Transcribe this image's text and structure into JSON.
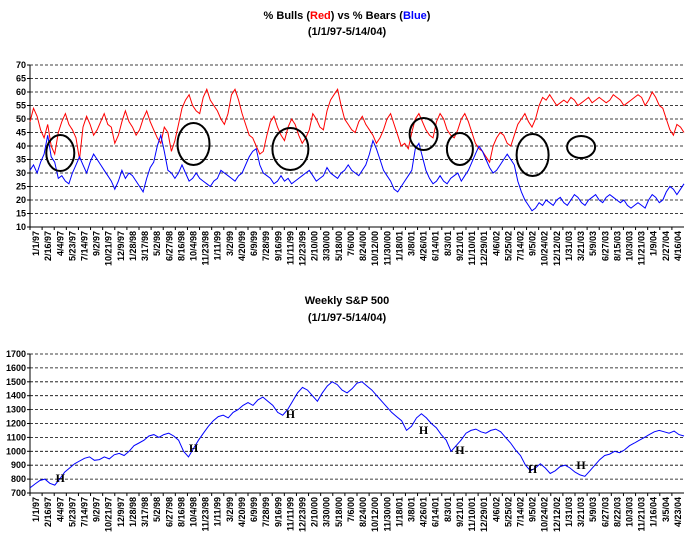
{
  "chart_data": [
    {
      "type": "line",
      "title_parts": [
        {
          "text": "% Bulls (",
          "color": "#000000"
        },
        {
          "text": "Red",
          "color": "#ff0000"
        },
        {
          "text": ") vs % Bears (",
          "color": "#000000"
        },
        {
          "text": "Blue",
          "color": "#0000ff"
        },
        {
          "text": ")",
          "color": "#000000"
        }
      ],
      "subtitle": "(1/1/97-5/14/04)",
      "xlabel": "",
      "ylabel": "",
      "ylim": [
        10,
        70
      ],
      "yticks": [
        10,
        15,
        20,
        25,
        30,
        35,
        40,
        45,
        50,
        55,
        60,
        65,
        70
      ],
      "grid": "horizontal-dashed",
      "x_tick_labels": [
        "1/1/97",
        "2/16/97",
        "4/4/97",
        "5/23/97",
        "7/14/97",
        "9/2/97",
        "10/21/97",
        "12/9/97",
        "1/28/98",
        "3/17/98",
        "5/2/98",
        "6/27/98",
        "8/16/98",
        "10/4/98",
        "11/23/98",
        "1/11/99",
        "3/2/99",
        "4/20/99",
        "6/9/99",
        "7/28/99",
        "9/16/99",
        "11/11/99",
        "12/23/99",
        "2/10/00",
        "3/30/00",
        "5/18/00",
        "7/6/00",
        "8/24/00",
        "10/12/00",
        "11/30/00",
        "1/18/01",
        "3/8/01",
        "4/26/01",
        "6/14/01",
        "8/3/01",
        "9/21/01",
        "11/10/01",
        "12/29/01",
        "4/6/02",
        "5/25/02",
        "7/14/02",
        "9/5/02",
        "10/24/02",
        "12/12/02",
        "1/31/03",
        "3/21/03",
        "5/9/03",
        "6/27/03",
        "8/15/03",
        "10/3/03",
        "11/21/03",
        "1/9/04",
        "2/27/04",
        "4/16/04"
      ],
      "series": [
        {
          "name": "% Bulls",
          "color": "#ff0000",
          "values": [
            49,
            54,
            51,
            46,
            43,
            48,
            40,
            37,
            45,
            49,
            52,
            48,
            46,
            43,
            35,
            47,
            51,
            48,
            44,
            46,
            49,
            52,
            48,
            47,
            41,
            44,
            49,
            53,
            49,
            47,
            44,
            46,
            50,
            53,
            49,
            46,
            43,
            41,
            47,
            45,
            38,
            42,
            48,
            54,
            57,
            59,
            55,
            53,
            52,
            58,
            61,
            57,
            55,
            53,
            50,
            48,
            52,
            59,
            61,
            57,
            52,
            48,
            44,
            43,
            40,
            37,
            38,
            44,
            49,
            51,
            47,
            44,
            42,
            47,
            50,
            48,
            44,
            41,
            43,
            46,
            52,
            50,
            47,
            46,
            53,
            57,
            59,
            61,
            55,
            50,
            48,
            46,
            45,
            49,
            51,
            48,
            46,
            44,
            41,
            43,
            46,
            50,
            52,
            48,
            44,
            40,
            41,
            39,
            45,
            50,
            52,
            49,
            46,
            44,
            43,
            49,
            52,
            50,
            46,
            44,
            43,
            46,
            50,
            52,
            49,
            45,
            41,
            39,
            38,
            36,
            34,
            40,
            43,
            45,
            44,
            41,
            40,
            44,
            48,
            50,
            52,
            49,
            47,
            50,
            55,
            58,
            57,
            59,
            57,
            55,
            56,
            57,
            56,
            58,
            57,
            55,
            56,
            57,
            58,
            56,
            57,
            58,
            57,
            56,
            57,
            59,
            58,
            57,
            55,
            56,
            57,
            58,
            59,
            58,
            55,
            57,
            60,
            58,
            55,
            54,
            50,
            46,
            44,
            48,
            47,
            45
          ]
        },
        {
          "name": "% Bears",
          "color": "#0000ff",
          "values": [
            31,
            33,
            30,
            34,
            37,
            44,
            36,
            34,
            28,
            29,
            27,
            26,
            30,
            33,
            36,
            33,
            30,
            34,
            37,
            35,
            33,
            31,
            29,
            27,
            24,
            27,
            31,
            28,
            30,
            29,
            27,
            25,
            23,
            28,
            32,
            34,
            40,
            44,
            38,
            31,
            30,
            28,
            30,
            33,
            30,
            27,
            28,
            30,
            28,
            27,
            26,
            25,
            27,
            28,
            31,
            30,
            29,
            28,
            27,
            29,
            30,
            33,
            36,
            38,
            39,
            33,
            30,
            29,
            28,
            26,
            27,
            29,
            27,
            28,
            26,
            27,
            28,
            29,
            30,
            31,
            29,
            27,
            28,
            29,
            32,
            30,
            29,
            28,
            30,
            31,
            33,
            31,
            30,
            29,
            31,
            33,
            37,
            42,
            39,
            35,
            31,
            29,
            27,
            24,
            23,
            25,
            27,
            29,
            31,
            39,
            41,
            36,
            31,
            28,
            26,
            27,
            29,
            27,
            26,
            28,
            29,
            30,
            27,
            29,
            31,
            34,
            37,
            40,
            38,
            35,
            32,
            30,
            31,
            33,
            35,
            37,
            35,
            33,
            27,
            23,
            20,
            18,
            16,
            17,
            19,
            18,
            20,
            19,
            18,
            20,
            21,
            19,
            18,
            20,
            22,
            21,
            19,
            18,
            20,
            21,
            22,
            20,
            19,
            21,
            22,
            21,
            20,
            19,
            20,
            18,
            17,
            18,
            19,
            18,
            17,
            20,
            22,
            21,
            19,
            20,
            23,
            25,
            24,
            22,
            24,
            26
          ]
        }
      ],
      "circled_regions": [
        "4/4/97",
        "10/4/98",
        "11/11/99",
        "4/26/01",
        "9/21/01",
        "9/5/02",
        "3/21/03"
      ]
    },
    {
      "type": "line",
      "title": "Weekly S&P 500",
      "subtitle": "(1/1/97-5/14/04)",
      "xlabel": "",
      "ylabel": "",
      "ylim": [
        700,
        1700
      ],
      "yticks": [
        700,
        800,
        900,
        1000,
        1100,
        1200,
        1300,
        1400,
        1500,
        1600,
        1700
      ],
      "grid": "horizontal-dashed",
      "x_tick_labels": [
        "1/1/97",
        "2/16/97",
        "4/4/97",
        "5/23/97",
        "7/14/97",
        "9/2/97",
        "10/21/97",
        "12/9/97",
        "1/28/98",
        "3/17/98",
        "5/2/98",
        "6/27/98",
        "8/16/98",
        "10/4/98",
        "11/23/98",
        "1/11/99",
        "3/2/99",
        "4/20/99",
        "6/9/99",
        "7/28/99",
        "9/16/99",
        "11/11/99",
        "12/23/99",
        "2/10/00",
        "3/30/00",
        "5/18/00",
        "7/6/00",
        "8/24/00",
        "10/12/00",
        "11/30/00",
        "1/18/01",
        "3/8/01",
        "4/26/01",
        "6/14/01",
        "8/3/01",
        "9/21/01",
        "11/10/01",
        "12/29/01",
        "4/6/02",
        "5/25/02",
        "7/14/02",
        "9/5/02",
        "10/24/02",
        "12/12/02",
        "1/31/03",
        "3/21/03",
        "5/9/03",
        "6/27/03",
        "8/22/03",
        "10/3/03",
        "11/21/03",
        "1/16/04",
        "3/5/04",
        "4/23/04"
      ],
      "series": [
        {
          "name": "S&P 500",
          "color": "#0000ff",
          "values": [
            737,
            765,
            790,
            800,
            770,
            757,
            800,
            850,
            880,
            910,
            930,
            950,
            960,
            935,
            940,
            960,
            945,
            975,
            985,
            970,
            1000,
            1040,
            1060,
            1080,
            1110,
            1120,
            1100,
            1120,
            1130,
            1110,
            1080,
            1000,
            960,
            1020,
            1080,
            1130,
            1180,
            1220,
            1250,
            1260,
            1240,
            1280,
            1300,
            1330,
            1350,
            1330,
            1370,
            1390,
            1360,
            1330,
            1280,
            1260,
            1300,
            1360,
            1420,
            1460,
            1440,
            1400,
            1360,
            1420,
            1470,
            1500,
            1480,
            1440,
            1420,
            1450,
            1490,
            1500,
            1470,
            1440,
            1400,
            1360,
            1320,
            1280,
            1250,
            1220,
            1150,
            1180,
            1240,
            1270,
            1240,
            1200,
            1170,
            1120,
            1080,
            1000,
            1040,
            1080,
            1130,
            1150,
            1160,
            1140,
            1130,
            1150,
            1160,
            1140,
            1100,
            1060,
            1010,
            970,
            900,
            860,
            880,
            910,
            880,
            840,
            860,
            890,
            900,
            880,
            850,
            830,
            820,
            860,
            900,
            940,
            970,
            980,
            1000,
            990,
            1010,
            1040,
            1060,
            1080,
            1100,
            1120,
            1140,
            1150,
            1140,
            1130,
            1145,
            1120,
            1110
          ]
        }
      ],
      "annotations": [
        {
          "text": "H",
          "x": "4/4/97"
        },
        {
          "text": "H",
          "x": "10/4/98"
        },
        {
          "text": "H",
          "x": "11/11/99"
        },
        {
          "text": "H",
          "x": "4/26/01"
        },
        {
          "text": "H",
          "x": "9/21/01"
        },
        {
          "text": "H",
          "x": "9/5/02"
        },
        {
          "text": "H",
          "x": "3/21/03"
        }
      ]
    }
  ]
}
